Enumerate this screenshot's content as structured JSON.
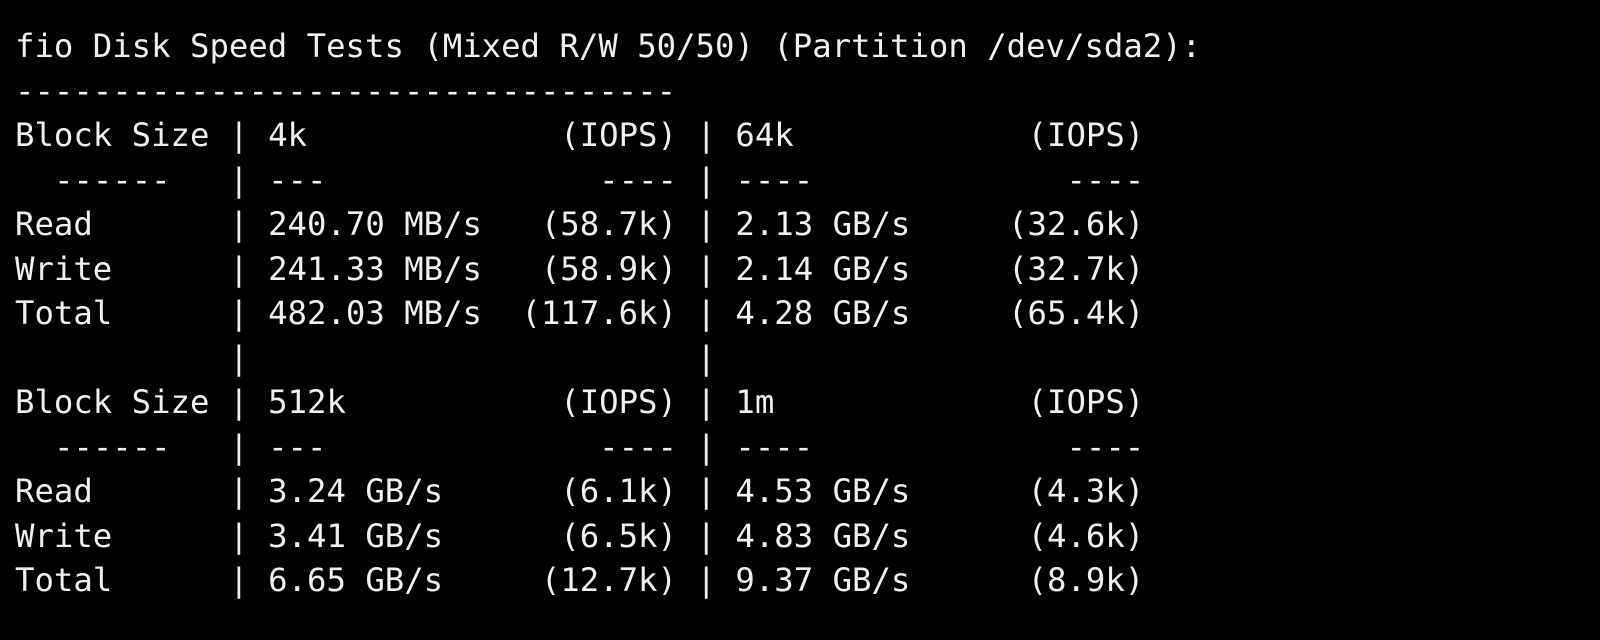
{
  "title": "fio Disk Speed Tests (Mixed R/W 50/50) (Partition /dev/sda2):",
  "separator": "----------------------------------",
  "divider": "|",
  "sections": [
    {
      "header": [
        "Block Size",
        "4k",
        "(IOPS)",
        "64k",
        "(IOPS)"
      ],
      "rule": [
        "------",
        "---",
        "----",
        "----",
        "----"
      ],
      "rows": [
        [
          "Read",
          "240.70 MB/s",
          "(58.7k)",
          "2.13 GB/s",
          "(32.6k)"
        ],
        [
          "Write",
          "241.33 MB/s",
          "(58.9k)",
          "2.14 GB/s",
          "(32.7k)"
        ],
        [
          "Total",
          "482.03 MB/s",
          "(117.6k)",
          "4.28 GB/s",
          "(65.4k)"
        ]
      ]
    },
    {
      "header": [
        "Block Size",
        "512k",
        "(IOPS)",
        "1m",
        "(IOPS)"
      ],
      "rule": [
        "------",
        "---",
        "----",
        "----",
        "----"
      ],
      "rows": [
        [
          "Read",
          "3.24 GB/s",
          "(6.1k)",
          "4.53 GB/s",
          "(4.3k)"
        ],
        [
          "Write",
          "3.41 GB/s",
          "(6.5k)",
          "4.83 GB/s",
          "(4.6k)"
        ],
        [
          "Total",
          "6.65 GB/s",
          "(12.7k)",
          "9.37 GB/s",
          "(8.9k)"
        ]
      ]
    }
  ]
}
